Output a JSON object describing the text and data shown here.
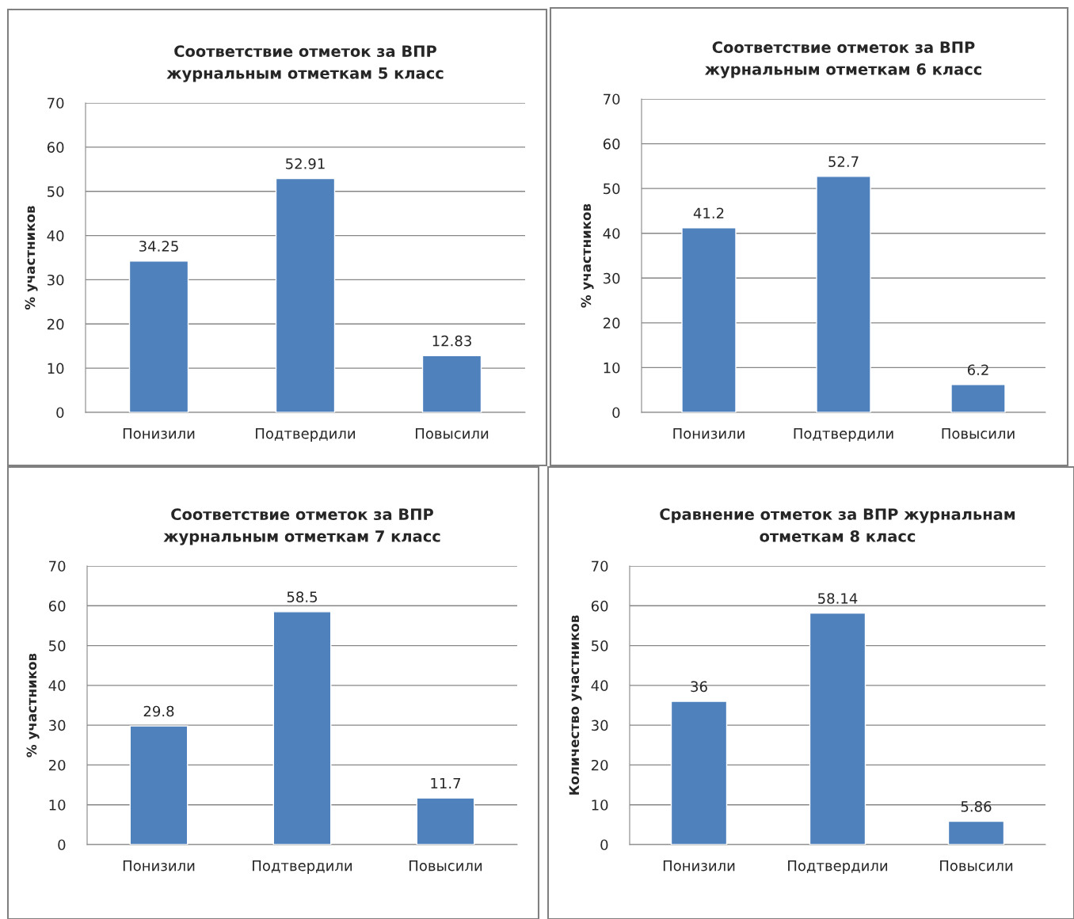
{
  "chart_data": [
    {
      "type": "bar",
      "title": "Соответствие отметок за ВПР\nжурнальным отметкам 5 класс",
      "ylabel": "% участников",
      "categories": [
        "Понизили",
        "Подтвердили",
        "Повысили"
      ],
      "values": [
        34.25,
        52.91,
        12.83
      ],
      "color": "#4f81bd",
      "ylim": [
        0,
        70
      ],
      "yticks": [
        0,
        10,
        20,
        30,
        40,
        50,
        60,
        70
      ],
      "grid": "y",
      "data_labels": true,
      "legend": false
    },
    {
      "type": "bar",
      "title": "Соответствие отметок за ВПР\nжурнальным отметкам 6 класс",
      "ylabel": "% участников",
      "categories": [
        "Понизили",
        "Подтвердили",
        "Повысили"
      ],
      "values": [
        41.2,
        52.7,
        6.2
      ],
      "color": "#4f81bd",
      "ylim": [
        0,
        70
      ],
      "yticks": [
        0,
        10,
        20,
        30,
        40,
        50,
        60,
        70
      ],
      "grid": "y",
      "data_labels": true,
      "legend": false
    },
    {
      "type": "bar",
      "title": "Соответствие отметок за ВПР\nжурнальным отметкам 7 класс",
      "ylabel": "% участников",
      "categories": [
        "Понизили",
        "Подтвердили",
        "Повысили"
      ],
      "values": [
        29.8,
        58.5,
        11.7
      ],
      "color": "#4f81bd",
      "ylim": [
        0,
        70
      ],
      "yticks": [
        0,
        10,
        20,
        30,
        40,
        50,
        60,
        70
      ],
      "grid": "y",
      "data_labels": true,
      "legend": false
    },
    {
      "type": "bar",
      "title": "Сравнение отметок за ВПР журнальнам\nотметкам 8 класс",
      "ylabel": "Количество участников",
      "categories": [
        "Понизили",
        "Подтвердили",
        "Повысили"
      ],
      "values": [
        36,
        58.14,
        5.86
      ],
      "color": "#4f81bd",
      "ylim": [
        0,
        70
      ],
      "yticks": [
        0,
        10,
        20,
        30,
        40,
        50,
        60,
        70
      ],
      "grid": "y",
      "data_labels": true,
      "legend": false
    }
  ]
}
